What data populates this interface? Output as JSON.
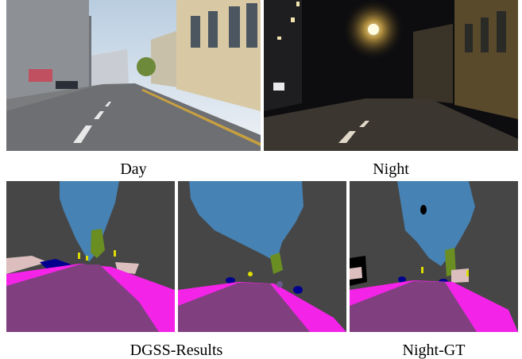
{
  "captions": {
    "day": "Day",
    "night": "Night",
    "dgss_results": "DGSS-Results",
    "night_gt": "Night-GT"
  }
}
